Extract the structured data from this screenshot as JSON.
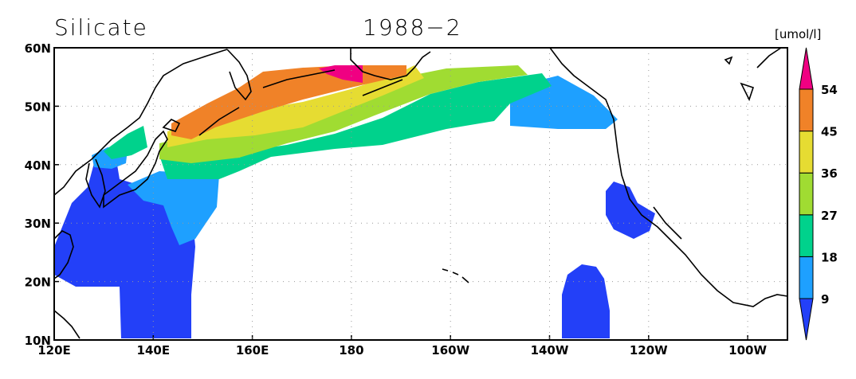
{
  "title": "Silicate",
  "period": "1988−2",
  "units": "[umol/l]",
  "lat_labels": [
    "60N",
    "50N",
    "40N",
    "30N",
    "20N",
    "10N"
  ],
  "lon_labels": [
    "120E",
    "140E",
    "160E",
    "180",
    "160W",
    "140W",
    "120W",
    "100W"
  ],
  "colorbar": {
    "levels": [
      9,
      18,
      27,
      36,
      45,
      54
    ],
    "colors": [
      "#2340f8",
      "#1ea0ff",
      "#00d28c",
      "#a0dc32",
      "#e6dc32",
      "#f08228",
      "#f00082"
    ]
  }
}
